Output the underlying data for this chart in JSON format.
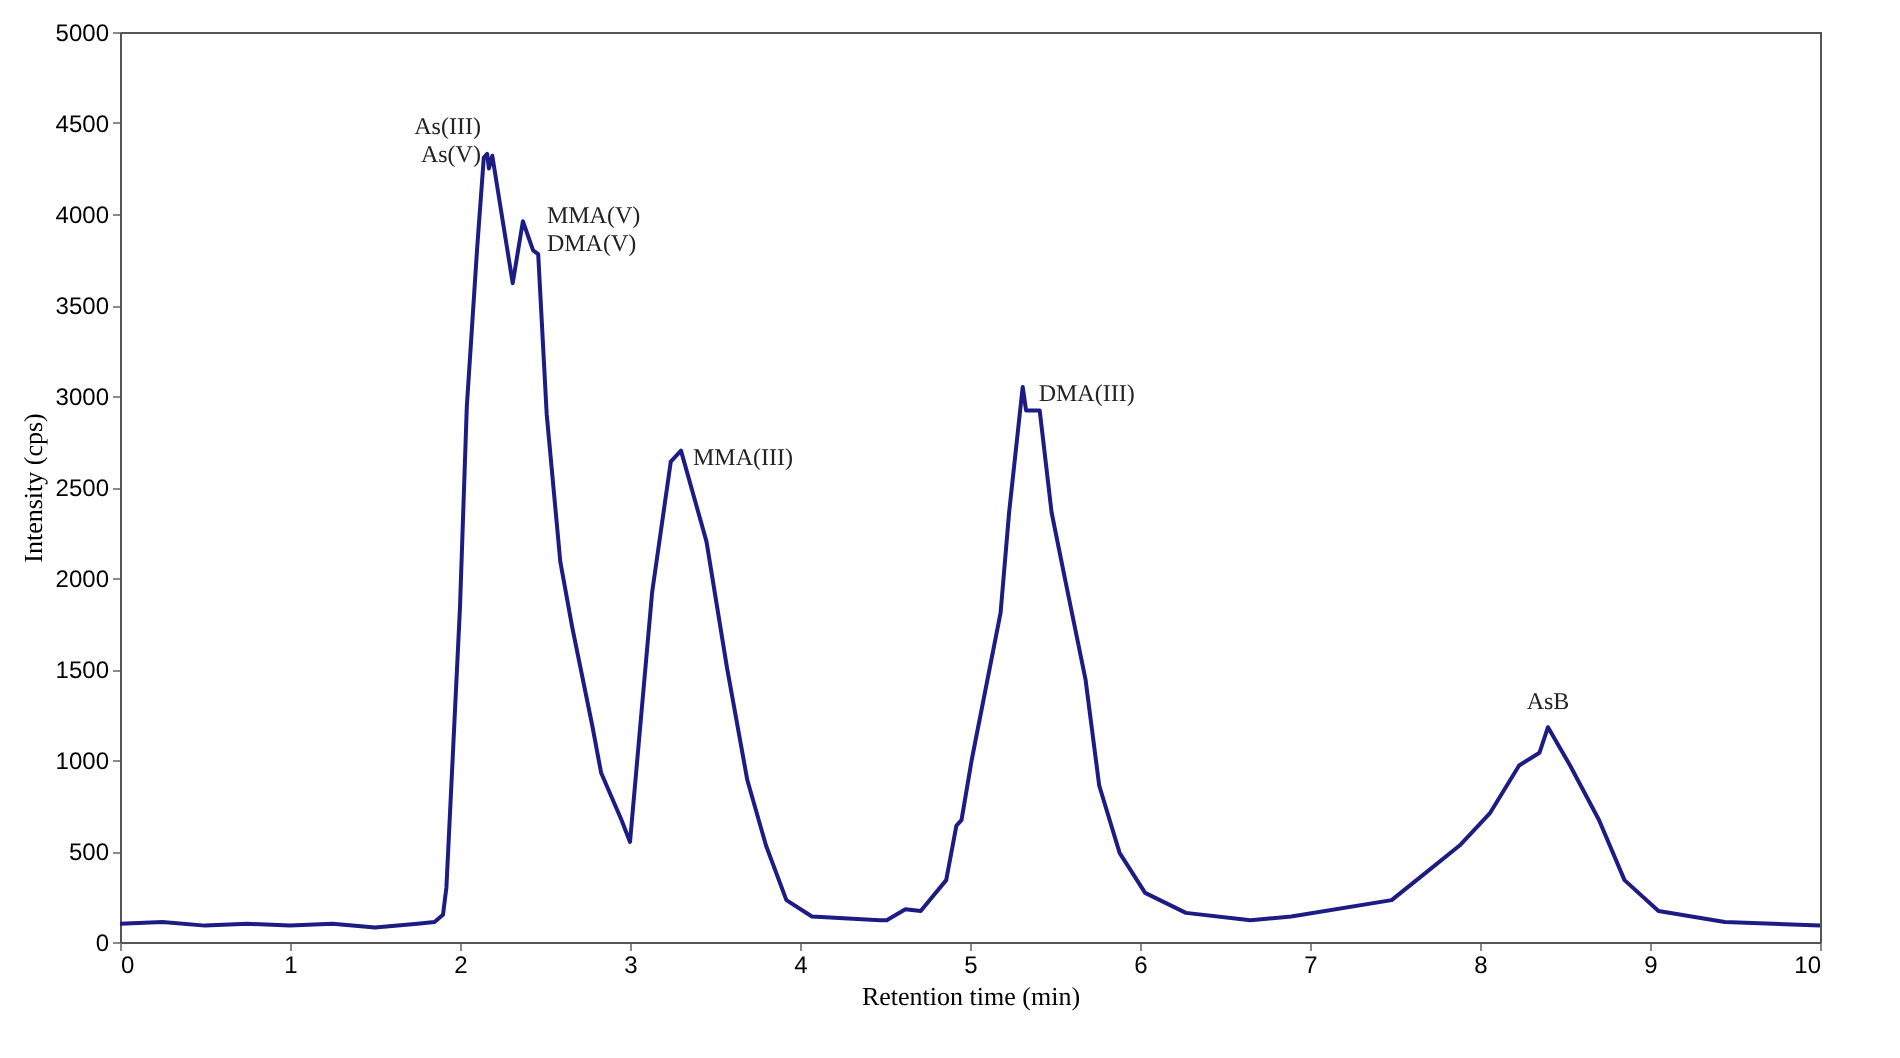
{
  "chart_data": {
    "type": "line",
    "xlabel": "Retention time (min)",
    "ylabel": "Intensity (cps)",
    "series": [
      {
        "color": "#1c1c84",
        "x": [
          0,
          0.25,
          0.5,
          0.75,
          1,
          1.25,
          1.5,
          1.75,
          1.85,
          1.9,
          1.92,
          2.0,
          2.04,
          2.1,
          2.14,
          2.16,
          2.17,
          2.19,
          2.31,
          2.37,
          2.43,
          2.46,
          2.51,
          2.59,
          2.66,
          2.78,
          2.83,
          2.95,
          3.0,
          3.13,
          3.24,
          3.3,
          3.45,
          3.57,
          3.69,
          3.8,
          3.92,
          4.07,
          4.47,
          4.51,
          4.62,
          4.71,
          4.86,
          4.92,
          4.95,
          5.01,
          5.18,
          5.23,
          5.31,
          5.33,
          5.41,
          5.48,
          5.56,
          5.68,
          5.76,
          5.88,
          6.03,
          6.27,
          6.65,
          6.89,
          7.48,
          7.68,
          7.88,
          8.06,
          8.23,
          8.35,
          8.4,
          8.53,
          8.7,
          8.85,
          9.05,
          9.44,
          10.0
        ],
        "values": [
          100,
          110,
          90,
          100,
          90,
          100,
          80,
          100,
          110,
          150,
          300,
          1840,
          2940,
          3800,
          4310,
          4330,
          4250,
          4320,
          3620,
          3960,
          3800,
          3780,
          2900,
          2090,
          1730,
          1180,
          930,
          670,
          550,
          1920,
          2640,
          2700,
          2200,
          1510,
          890,
          530,
          230,
          140,
          120,
          120,
          180,
          170,
          340,
          640,
          670,
          1000,
          1810,
          2360,
          3050,
          2920,
          2920,
          2360,
          1990,
          1440,
          860,
          490,
          270,
          160,
          120,
          140,
          230,
          380,
          530,
          710,
          970,
          1040,
          1180,
          970,
          670,
          340,
          170,
          110,
          90
        ]
      }
    ],
    "xlim": [
      0,
      10
    ],
    "xticks": [
      0,
      1,
      2,
      3,
      4,
      5,
      6,
      7,
      8,
      9,
      10
    ],
    "ylim": [
      0,
      5000
    ],
    "yticks": [
      0,
      500,
      1000,
      1500,
      2000,
      2500,
      3000,
      3500,
      4000,
      4500,
      5000
    ],
    "grid": false,
    "marker": "none",
    "line_style": "solid",
    "annotations": [
      {
        "text": "As(III)\nAs(V)",
        "x": 2.17,
        "y": 4320
      },
      {
        "text": "MMA(V)\nDMA(V)",
        "x": 2.37,
        "y": 3960
      },
      {
        "text": "MMA(III)",
        "x": 3.3,
        "y": 2700
      },
      {
        "text": "DMA(III)",
        "x": 5.31,
        "y": 3050
      },
      {
        "text": "AsB",
        "x": 8.4,
        "y": 1180
      }
    ]
  }
}
